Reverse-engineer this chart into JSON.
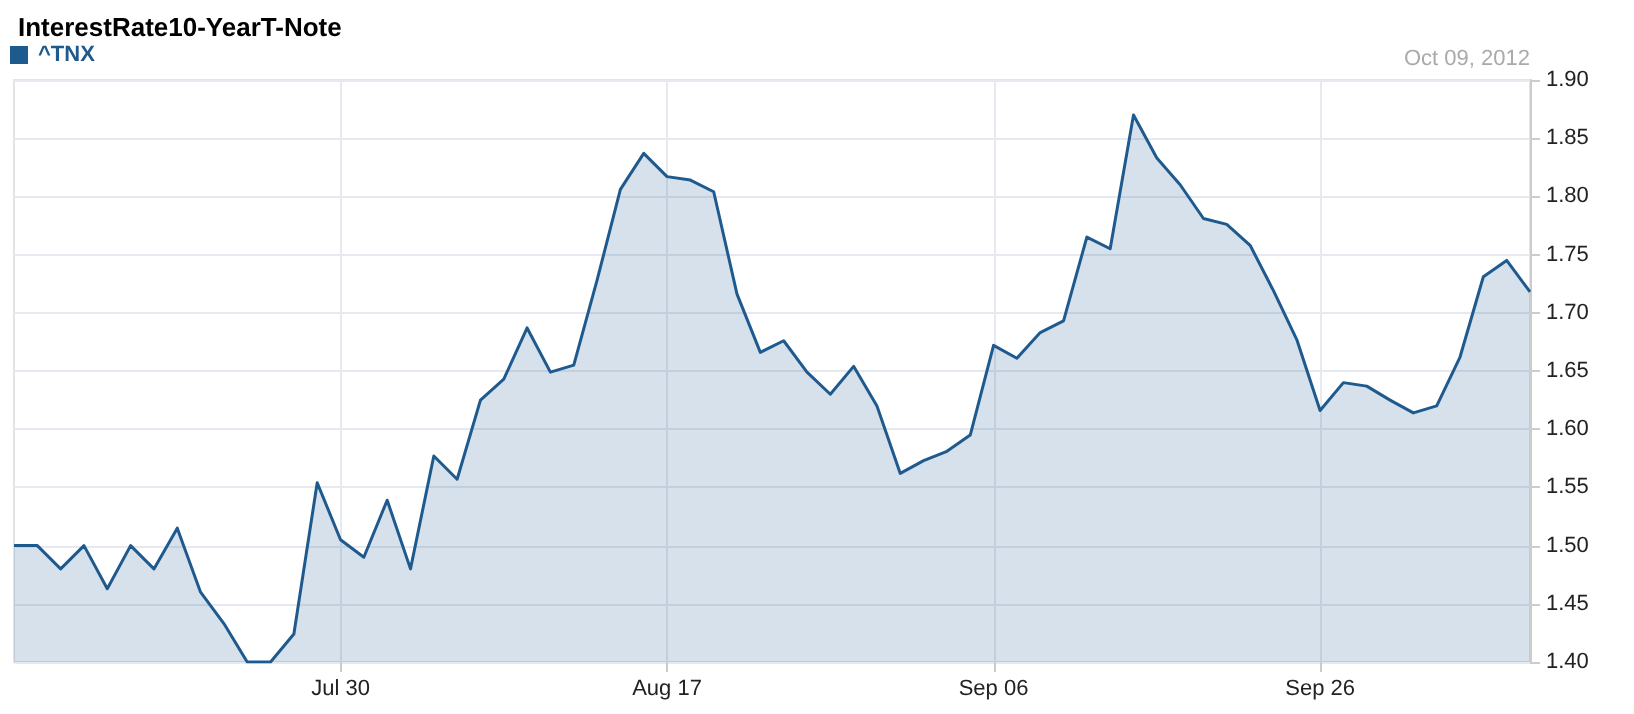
{
  "chart_data": {
    "type": "area",
    "title": "InterestRate10-YearT-Note",
    "annotations": [
      "Oct 09, 2012"
    ],
    "categories": [
      null,
      null,
      null,
      null,
      null,
      null,
      null,
      null,
      null,
      null,
      null,
      null,
      null,
      null,
      "Jul 30",
      null,
      null,
      null,
      null,
      null,
      null,
      null,
      null,
      null,
      null,
      null,
      null,
      null,
      "Aug 17",
      null,
      null,
      null,
      null,
      null,
      null,
      null,
      null,
      null,
      null,
      null,
      null,
      null,
      "Sep 06",
      null,
      null,
      null,
      null,
      null,
      null,
      null,
      null,
      null,
      null,
      null,
      null,
      null,
      "Sep 26",
      null,
      null,
      null,
      null,
      null,
      null,
      null,
      null,
      null
    ],
    "series": [
      {
        "name": "^TNX",
        "color": "#1f5a8f",
        "values": [
          1.5,
          1.5,
          1.48,
          1.5,
          1.463,
          1.5,
          1.48,
          1.515,
          1.46,
          1.433,
          1.4,
          1.4,
          1.424,
          1.554,
          1.505,
          1.49,
          1.539,
          1.48,
          1.577,
          1.557,
          1.625,
          1.643,
          1.687,
          1.649,
          1.655,
          1.728,
          1.806,
          1.837,
          1.817,
          1.814,
          1.804,
          1.716,
          1.666,
          1.676,
          1.649,
          1.63,
          1.654,
          1.62,
          1.562,
          1.573,
          1.581,
          1.595,
          1.672,
          1.661,
          1.683,
          1.693,
          1.765,
          1.755,
          1.87,
          1.833,
          1.81,
          1.781,
          1.776,
          1.758,
          1.719,
          1.677,
          1.616,
          1.64,
          1.637,
          1.625,
          1.614,
          1.62,
          1.662,
          1.731,
          1.745,
          1.718
        ]
      }
    ],
    "ylim": [
      1.4,
      1.9
    ],
    "yticks": [
      {
        "value": 1.4,
        "label": "1.40"
      },
      {
        "value": 1.45,
        "label": "1.45"
      },
      {
        "value": 1.5,
        "label": "1.50"
      },
      {
        "value": 1.55,
        "label": "1.55"
      },
      {
        "value": 1.6,
        "label": "1.60"
      },
      {
        "value": 1.65,
        "label": "1.65"
      },
      {
        "value": 1.7,
        "label": "1.70"
      },
      {
        "value": 1.75,
        "label": "1.75"
      },
      {
        "value": 1.8,
        "label": "1.80"
      },
      {
        "value": 1.85,
        "label": "1.85"
      },
      {
        "value": 1.9,
        "label": "1.90"
      }
    ],
    "grid": true,
    "legend": "top left",
    "marker": "none",
    "line_style": "solid"
  }
}
